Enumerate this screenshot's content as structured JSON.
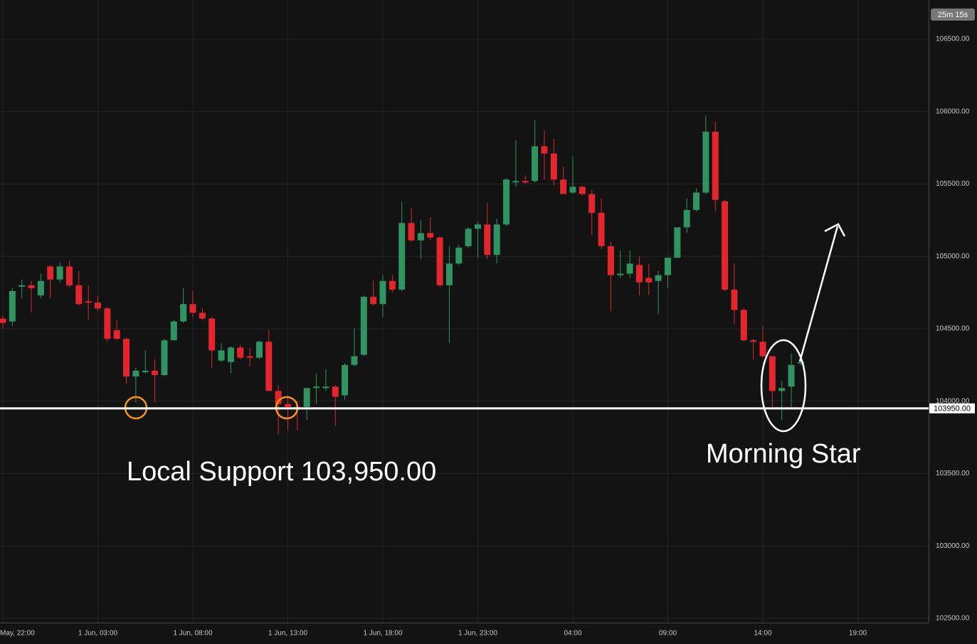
{
  "chart_data": {
    "type": "candlestick",
    "timer": "25m 15s",
    "up_color": "#2f9461",
    "down_color": "#e3262d",
    "categories": [
      "May, 22:00",
      null,
      null,
      null,
      null,
      null,
      null,
      null,
      null,
      null,
      "1 Jun, 03:00",
      null,
      null,
      null,
      null,
      null,
      null,
      null,
      null,
      null,
      "1 Jun, 08:00",
      null,
      null,
      null,
      null,
      null,
      null,
      null,
      null,
      null,
      "1 Jun, 13:00",
      null,
      null,
      null,
      null,
      null,
      null,
      null,
      null,
      null,
      "1 Jun, 18:00",
      null,
      null,
      null,
      null,
      null,
      null,
      null,
      null,
      null,
      "1 Jun, 23:00",
      null,
      null,
      null,
      null,
      null,
      null,
      null,
      null,
      null,
      "04:00",
      null,
      null,
      null,
      null,
      null,
      null,
      null,
      null,
      null,
      "09:00",
      null,
      null,
      null,
      null,
      null,
      null,
      null,
      null,
      null,
      "14:00",
      null,
      null,
      null,
      null,
      null,
      null,
      null,
      null,
      null,
      "19:00"
    ],
    "open": [
      104570,
      104550,
      104790,
      104800,
      104730,
      104930,
      104840,
      104930,
      104800,
      104690,
      104680,
      104640,
      104490,
      104430,
      104170,
      104200,
      104210,
      104180,
      104420,
      104550,
      104670,
      104610,
      104570,
      104280,
      104270,
      104370,
      104310,
      104300,
      104410,
      104070,
      103980,
      103960,
      103960,
      104090,
      104090,
      104100,
      104040,
      104250,
      104320,
      104720,
      104670,
      104830,
      104770,
      105230,
      105110,
      105160,
      105130,
      104800,
      104950,
      105070,
      105190,
      105220,
      105010,
      105220,
      105510,
      105520,
      105520,
      105760,
      105710,
      105530,
      105440,
      105480,
      105430,
      105300,
      105070,
      104870,
      104880,
      104940,
      104850,
      104830,
      104870,
      104990,
      105200,
      105320,
      105440,
      105860,
      105380,
      104770,
      104630,
      104420,
      104410,
      104310,
      104070,
      104100,
      104260,
      null,
      null,
      null,
      null,
      null,
      null
    ],
    "high": [
      104590,
      104780,
      104840,
      104830,
      104880,
      104940,
      104960,
      104970,
      104900,
      104800,
      104730,
      104650,
      104560,
      104440,
      104230,
      104350,
      104290,
      104430,
      104560,
      104780,
      104760,
      104640,
      104580,
      104400,
      104380,
      104390,
      104370,
      104420,
      104490,
      104110,
      104040,
      104000,
      104090,
      104190,
      104220,
      104110,
      104260,
      104500,
      104730,
      104830,
      104870,
      104870,
      105380,
      105330,
      105250,
      105270,
      105140,
      105070,
      105080,
      105200,
      105240,
      105370,
      105260,
      105540,
      105800,
      105560,
      105940,
      105870,
      105810,
      105620,
      105690,
      105490,
      105460,
      105400,
      105100,
      105040,
      105040,
      105000,
      104950,
      104900,
      104990,
      105200,
      105400,
      105470,
      105970,
      105930,
      105390,
      104950,
      104640,
      104430,
      104520,
      104310,
      104140,
      104330,
      104280,
      null,
      null,
      null,
      null,
      null,
      null
    ],
    "low": [
      104500,
      104520,
      104710,
      104610,
      104710,
      104710,
      104820,
      104790,
      104660,
      104560,
      104620,
      104410,
      104420,
      104120,
      103990,
      104190,
      103990,
      104170,
      104420,
      104540,
      104580,
      104560,
      104230,
      104270,
      104190,
      104290,
      104240,
      104290,
      104070,
      103770,
      103800,
      103800,
      103870,
      103980,
      104070,
      103830,
      104010,
      104240,
      104310,
      104660,
      104580,
      104750,
      104760,
      105100,
      104980,
      105110,
      104790,
      104400,
      104940,
      105060,
      104990,
      104980,
      104950,
      105210,
      105480,
      105500,
      105510,
      105530,
      105490,
      105430,
      105430,
      105420,
      105150,
      105050,
      104620,
      104850,
      104850,
      104730,
      104730,
      104600,
      104780,
      104990,
      105160,
      105310,
      105430,
      105310,
      104760,
      104530,
      104410,
      104290,
      104300,
      103960,
      103870,
      103960,
      104250,
      null,
      null,
      null,
      null,
      null,
      null
    ],
    "close": [
      104540,
      104760,
      104800,
      104780,
      104830,
      104840,
      104930,
      104800,
      104670,
      104680,
      104640,
      104430,
      104430,
      104170,
      104210,
      104210,
      104180,
      104420,
      104550,
      104670,
      104610,
      104570,
      104350,
      104350,
      104370,
      104300,
      104300,
      104410,
      104070,
      103980,
      103960,
      103950,
      104090,
      104100,
      104100,
      104030,
      104250,
      104310,
      104720,
      104670,
      104830,
      104770,
      105230,
      105110,
      105160,
      105130,
      104800,
      104950,
      105060,
      105190,
      105220,
      105010,
      105220,
      105530,
      105520,
      105510,
      105760,
      105710,
      105530,
      105430,
      105480,
      105430,
      105300,
      105070,
      104870,
      104880,
      104950,
      104820,
      104820,
      104870,
      104990,
      105200,
      105320,
      105440,
      105860,
      105390,
      104770,
      104630,
      104420,
      104410,
      104310,
      104070,
      104090,
      104250,
      104270,
      null,
      null,
      null,
      null,
      null,
      null
    ],
    "ylim": [
      102470,
      106770
    ],
    "yticks": [
      {
        "value": 102500,
        "label": "102500.00"
      },
      {
        "value": 103000,
        "label": "103000.00"
      },
      {
        "value": 103500,
        "label": "103500.00"
      },
      {
        "value": 104000,
        "label": "104000.00"
      },
      {
        "value": 104500,
        "label": "104500.00"
      },
      {
        "value": 105000,
        "label": "105000.00"
      },
      {
        "value": 105500,
        "label": "105500.00"
      },
      {
        "value": 106000,
        "label": "106000.00"
      },
      {
        "value": 106500,
        "label": "106500.00"
      }
    ],
    "grid": true,
    "support": {
      "value": 103950,
      "label": "103950.00"
    },
    "annotations": [
      "Local Support 103,950.00",
      "Morning Star"
    ]
  }
}
